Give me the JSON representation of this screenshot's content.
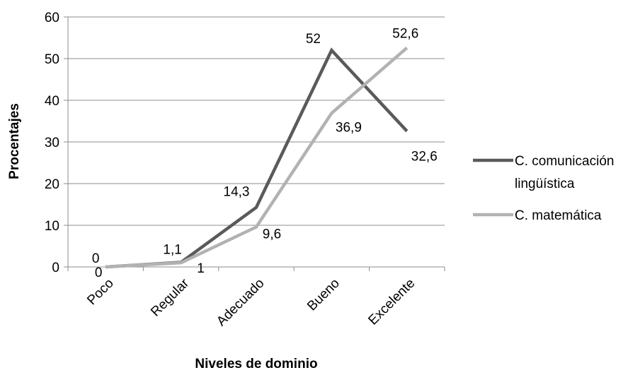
{
  "chart_data": {
    "type": "line",
    "title": "",
    "xlabel": "Niveles de dominio",
    "ylabel": "Procentajes",
    "categories": [
      "Poco",
      "Regular",
      "Adecuado",
      "Bueno",
      "Excelente"
    ],
    "ylim": [
      0,
      60
    ],
    "yticks": [
      0,
      10,
      20,
      30,
      40,
      50,
      60
    ],
    "grid": true,
    "legend": "right",
    "series": [
      {
        "name_lines": [
          "C. comunicación",
          "lingüística"
        ],
        "values": [
          0,
          1.1,
          14.3,
          52,
          32.6
        ],
        "labels": [
          "0",
          "1,1",
          "14,3",
          "52",
          "32,6"
        ],
        "color": "#5a5a5a"
      },
      {
        "name_lines": [
          "C. matemática"
        ],
        "values": [
          0,
          1,
          9.6,
          36.9,
          52.6
        ],
        "labels": [
          "0",
          "1",
          "9,6",
          "36,9",
          "52,6"
        ],
        "color": "#b2b2b2"
      }
    ]
  }
}
